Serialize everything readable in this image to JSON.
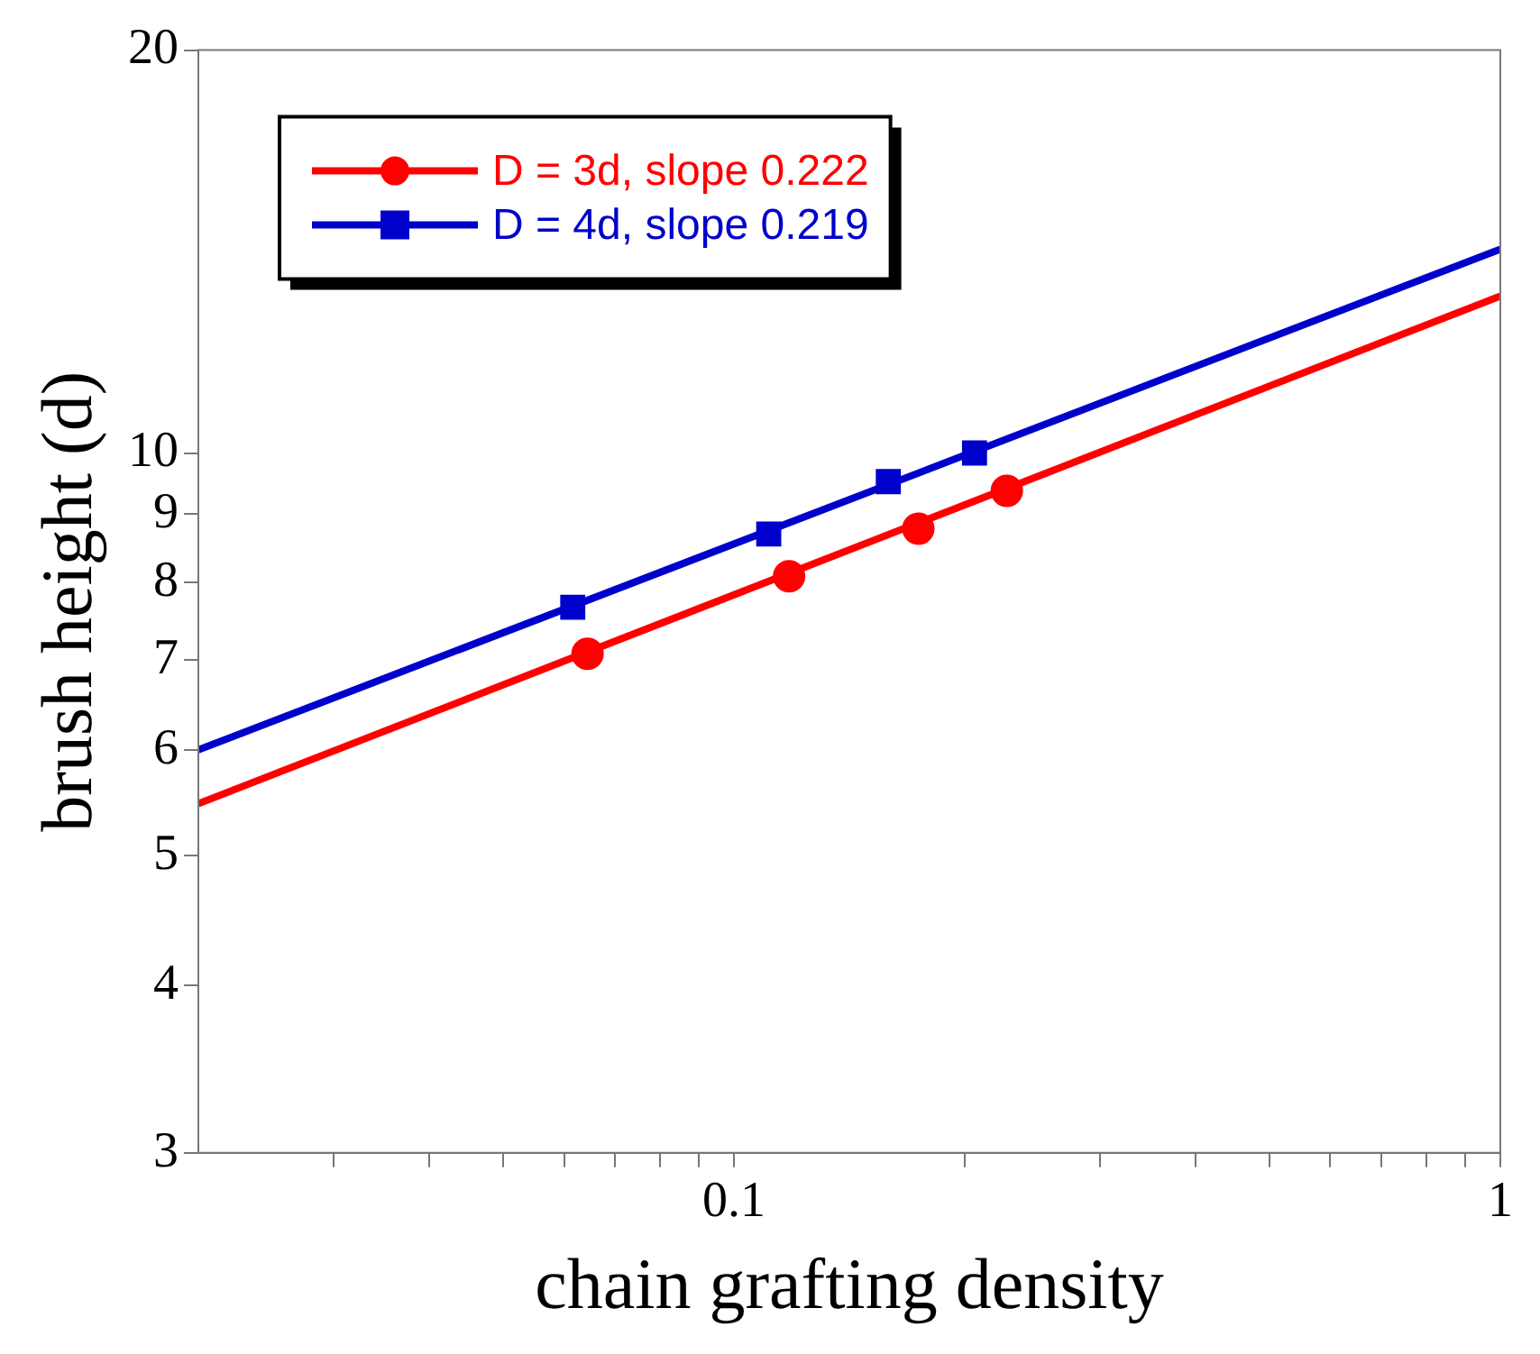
{
  "chart_data": {
    "type": "scatter",
    "xlabel": "chain grafting density",
    "ylabel": "brush height (d)",
    "log": "xy",
    "grid": false,
    "legend": "top left",
    "xlim": [
      0.02,
      1
    ],
    "ylim": [
      3,
      20
    ],
    "xticks": [
      {
        "value": 0.03,
        "label": null
      },
      {
        "value": 0.04,
        "label": null
      },
      {
        "value": 0.05,
        "label": null
      },
      {
        "value": 0.06,
        "label": null
      },
      {
        "value": 0.07,
        "label": null
      },
      {
        "value": 0.08,
        "label": null
      },
      {
        "value": 0.09,
        "label": null
      },
      0.1,
      {
        "value": 0.2,
        "label": null
      },
      {
        "value": 0.3,
        "label": null
      },
      {
        "value": 0.4,
        "label": null
      },
      {
        "value": 0.5,
        "label": null
      },
      {
        "value": 0.6,
        "label": null
      },
      {
        "value": 0.7,
        "label": null
      },
      {
        "value": 0.8,
        "label": null
      },
      {
        "value": 0.9,
        "label": null
      },
      1
    ],
    "yticks": [
      3,
      4,
      5,
      6,
      7,
      8,
      9,
      10,
      20
    ],
    "series": [
      {
        "name": "D = 3d, slope 0.222",
        "color": "#ff0000",
        "type": "scatter",
        "marker": "circle",
        "x": [
          0.0644,
          0.118,
          0.174,
          0.227
        ],
        "values": [
          7.08,
          8.09,
          8.78,
          9.37
        ]
      },
      {
        "name": "D = 4d, slope 0.219",
        "color": "#0000cc",
        "type": "scatter",
        "marker": "square",
        "x": [
          0.0616,
          0.111,
          0.159,
          0.206
        ],
        "values": [
          7.67,
          8.7,
          9.52,
          10.0
        ]
      },
      {
        "color": "#ff0000",
        "type": "line",
        "marker": "none",
        "line_style": "solid",
        "x": [
          0.02,
          1
        ],
        "values": [
          5.47,
          13.1
        ]
      },
      {
        "color": "#0000cc",
        "type": "line",
        "marker": "none",
        "line_style": "solid",
        "x": [
          0.02,
          1
        ],
        "values": [
          6.0,
          14.2
        ]
      }
    ]
  }
}
